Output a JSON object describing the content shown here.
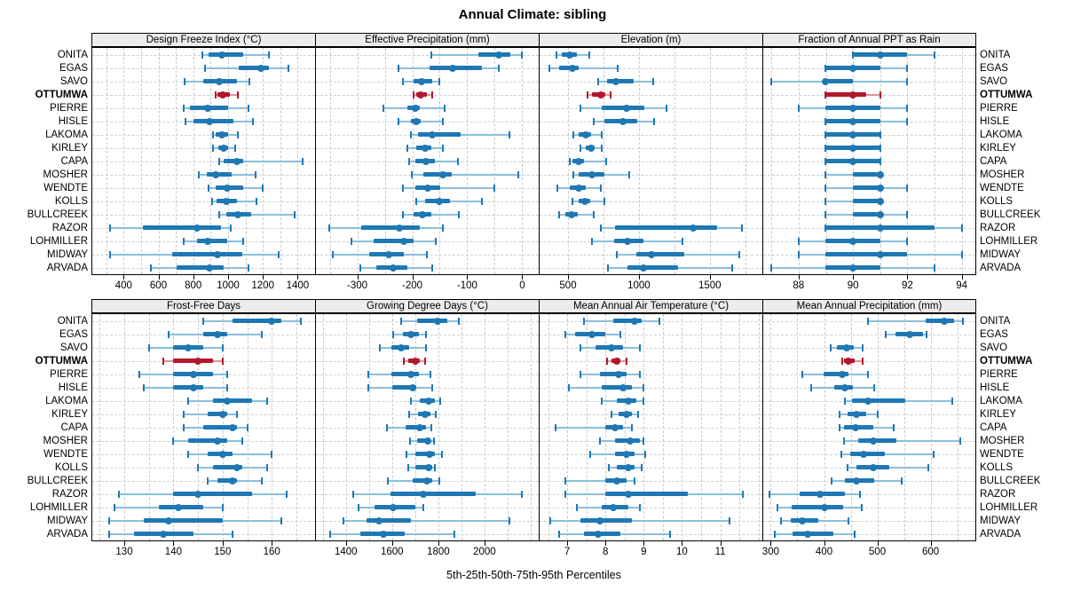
{
  "chart_data": {
    "type": "scatter",
    "style": "trellis_percentile_interval_dotplot",
    "title": "Annual Climate: sibling",
    "caption": "5th-25th-50th-75th-95th Percentiles",
    "percentile_levels": [
      5,
      25,
      50,
      75,
      95
    ],
    "highlighted_station": "OTTUMWA",
    "legend_position": "none",
    "grid": "dashed gray, horizontal per station and vertical at half-tick intervals",
    "colors": {
      "series_main": "#1f78b4",
      "series_light": "#8bbfdd",
      "highlight_main": "#b2182b",
      "highlight_light": "#dc9298",
      "strip_bg": "#ececec",
      "panel_border": "#000000",
      "grid_line": "#cccccc"
    },
    "stations": [
      "ONITA",
      "EGAS",
      "SAVO",
      "OTTUMWA",
      "PIERRE",
      "HISLE",
      "LAKOMA",
      "KIRLEY",
      "CAPA",
      "MOSHER",
      "WENDTE",
      "KOLLS",
      "BULLCREEK",
      "RAZOR",
      "LOHMILLER",
      "MIDWAY",
      "ARVADA"
    ],
    "panels": [
      {
        "title": "Design Freeze Index (°C)",
        "grid_row": 0,
        "grid_col": 0,
        "xlim": [
          220,
          1500
        ],
        "xticks": [
          400,
          600,
          800,
          1000,
          1200,
          1400
        ],
        "values": [
          [
            850,
            890,
            965,
            1085,
            1235
          ],
          [
            870,
            1060,
            1190,
            1235,
            1345
          ],
          [
            750,
            855,
            950,
            1050,
            1125
          ],
          [
            930,
            940,
            968,
            1010,
            1058
          ],
          [
            745,
            780,
            885,
            1000,
            1115
          ],
          [
            755,
            800,
            895,
            1030,
            1145
          ],
          [
            915,
            930,
            965,
            1000,
            1055
          ],
          [
            915,
            945,
            975,
            1000,
            1040
          ],
          [
            950,
            975,
            1050,
            1085,
            1430
          ],
          [
            830,
            880,
            930,
            1020,
            1160
          ],
          [
            890,
            930,
            995,
            1085,
            1200
          ],
          [
            910,
            935,
            990,
            1050,
            1165
          ],
          [
            950,
            990,
            1055,
            1135,
            1385
          ],
          [
            320,
            510,
            820,
            960,
            1015
          ],
          [
            745,
            820,
            885,
            995,
            1085
          ],
          [
            320,
            680,
            940,
            1080,
            1290
          ],
          [
            555,
            705,
            895,
            975,
            1115
          ]
        ]
      },
      {
        "title": "Effective Precipitation (mm)",
        "grid_row": 0,
        "grid_col": 1,
        "xlim": [
          -375,
          30
        ],
        "xticks": [
          -300,
          -200,
          -100,
          0
        ],
        "values": [
          [
            -165,
            -80,
            -43,
            -22,
            0
          ],
          [
            -225,
            -168,
            -126,
            -74,
            -42
          ],
          [
            -217,
            -198,
            -183,
            -163,
            -150
          ],
          [
            -198,
            -192,
            -184,
            -173,
            -164
          ],
          [
            -252,
            -209,
            -195,
            -187,
            -141
          ],
          [
            -225,
            -203,
            -192,
            -185,
            -145
          ],
          [
            -203,
            -190,
            -163,
            -112,
            -23
          ],
          [
            -209,
            -192,
            -177,
            -166,
            -145
          ],
          [
            -206,
            -195,
            -175,
            -158,
            -117
          ],
          [
            -201,
            -179,
            -145,
            -128,
            -7
          ],
          [
            -217,
            -195,
            -171,
            -149,
            -50
          ],
          [
            -192,
            -176,
            -151,
            -131,
            -74
          ],
          [
            -217,
            -198,
            -181,
            -166,
            -115
          ],
          [
            -351,
            -292,
            -224,
            -187,
            -145
          ],
          [
            -311,
            -270,
            -216,
            -197,
            -157
          ],
          [
            -344,
            -278,
            -243,
            -216,
            -174
          ],
          [
            -295,
            -265,
            -235,
            -208,
            -163
          ]
        ]
      },
      {
        "title": "Elevation (m)",
        "grid_row": 0,
        "grid_col": 2,
        "xlim": [
          300,
          1870
        ],
        "xticks": [
          500,
          1000,
          1500
        ],
        "values": [
          [
            420,
            455,
            510,
            565,
            650
          ],
          [
            370,
            440,
            530,
            575,
            850
          ],
          [
            712,
            775,
            840,
            960,
            1100
          ],
          [
            635,
            670,
            730,
            760,
            800
          ],
          [
            590,
            740,
            910,
            1040,
            1195
          ],
          [
            680,
            755,
            885,
            985,
            1105
          ],
          [
            535,
            575,
            625,
            660,
            735
          ],
          [
            590,
            625,
            660,
            690,
            740
          ],
          [
            510,
            530,
            577,
            610,
            770
          ],
          [
            540,
            577,
            670,
            755,
            930
          ],
          [
            425,
            510,
            577,
            623,
            730
          ],
          [
            530,
            573,
            620,
            656,
            754
          ],
          [
            438,
            483,
            525,
            567,
            680
          ],
          [
            733,
            833,
            1385,
            1552,
            1729
          ],
          [
            670,
            825,
            917,
            1035,
            1306
          ],
          [
            844,
            979,
            1088,
            1317,
            1708
          ],
          [
            779,
            921,
            1031,
            1275,
            1660
          ]
        ]
      },
      {
        "title": "Fraction of Annual PPT as Rain",
        "grid_row": 0,
        "grid_col": 3,
        "xlim": [
          86.7,
          94.5
        ],
        "xticks": [
          88,
          90,
          92,
          94
        ],
        "values": [
          [
            90,
            90,
            91,
            92,
            93
          ],
          [
            89,
            89,
            90,
            91,
            92
          ],
          [
            87,
            89,
            89,
            90,
            92
          ],
          [
            89,
            89,
            90,
            90.5,
            91
          ],
          [
            88,
            89,
            90,
            91,
            92
          ],
          [
            89,
            89,
            90,
            91,
            92
          ],
          [
            89,
            89,
            90,
            91,
            91
          ],
          [
            89,
            89,
            90,
            91,
            91
          ],
          [
            89,
            89,
            90,
            91,
            91
          ],
          [
            89,
            90,
            91,
            91,
            91
          ],
          [
            89,
            90,
            91,
            91,
            92
          ],
          [
            89,
            90,
            91,
            91,
            91
          ],
          [
            89,
            90,
            91,
            91,
            92
          ],
          [
            89,
            89,
            91,
            93,
            94
          ],
          [
            88,
            89,
            90,
            91,
            92
          ],
          [
            88,
            89,
            91,
            92,
            94
          ],
          [
            87,
            89,
            90,
            91,
            93
          ]
        ]
      },
      {
        "title": "Frost-Free Days",
        "grid_row": 1,
        "grid_col": 0,
        "xlim": [
          123.5,
          168.8
        ],
        "xticks": [
          130,
          140,
          150,
          160
        ],
        "values": [
          [
            146,
            152,
            160,
            162,
            166
          ],
          [
            139,
            146,
            149,
            151,
            158
          ],
          [
            135,
            140,
            143,
            146,
            150
          ],
          [
            138,
            140,
            145,
            148,
            150
          ],
          [
            133,
            140,
            144,
            148,
            151
          ],
          [
            134,
            140,
            144,
            146,
            151
          ],
          [
            143,
            148,
            151,
            156,
            159
          ],
          [
            142,
            147,
            150,
            151,
            153
          ],
          [
            142,
            146,
            152,
            153,
            155
          ],
          [
            140,
            143,
            149,
            151,
            154
          ],
          [
            143,
            147,
            150,
            152,
            160
          ],
          [
            145,
            148,
            153,
            154,
            159
          ],
          [
            147,
            149,
            152,
            153,
            158
          ],
          [
            129,
            140,
            145,
            156,
            163
          ],
          [
            128,
            137,
            141,
            146,
            150
          ],
          [
            127,
            134,
            139,
            150,
            162
          ],
          [
            127,
            132,
            138,
            144,
            152
          ]
        ]
      },
      {
        "title": "Growing Degree Days (°C)",
        "grid_row": 1,
        "grid_col": 1,
        "xlim": [
          1270,
          2235
        ],
        "xticks": [
          1400,
          1600,
          1800,
          2000
        ],
        "values": [
          [
            1640,
            1710,
            1795,
            1840,
            1890
          ],
          [
            1605,
            1645,
            1680,
            1715,
            1745
          ],
          [
            1545,
            1595,
            1640,
            1675,
            1745
          ],
          [
            1650,
            1670,
            1700,
            1720,
            1742
          ],
          [
            1495,
            1595,
            1680,
            1715,
            1765
          ],
          [
            1495,
            1600,
            1690,
            1705,
            1772
          ],
          [
            1682,
            1720,
            1757,
            1785,
            1810
          ],
          [
            1673,
            1714,
            1742,
            1765,
            1788
          ],
          [
            1578,
            1657,
            1720,
            1746,
            1769
          ],
          [
            1679,
            1708,
            1755,
            1765,
            1782
          ],
          [
            1663,
            1702,
            1763,
            1785,
            1817
          ],
          [
            1670,
            1702,
            1757,
            1772,
            1785
          ],
          [
            1580,
            1689,
            1750,
            1772,
            1804
          ],
          [
            1433,
            1593,
            1737,
            1964,
            2162
          ],
          [
            1456,
            1523,
            1606,
            1702,
            1737
          ],
          [
            1390,
            1490,
            1542,
            1682,
            2110
          ],
          [
            1331,
            1461,
            1561,
            1653,
            1868
          ]
        ]
      },
      {
        "title": "Mean Annual Air Temperature (°C)",
        "grid_row": 1,
        "grid_col": 2,
        "xlim": [
          6.28,
          12.1
        ],
        "xticks": [
          7,
          8,
          9,
          10,
          11
        ],
        "values": [
          [
            7.45,
            8.2,
            8.75,
            8.95,
            9.4
          ],
          [
            6.95,
            7.2,
            7.65,
            8.0,
            8.4
          ],
          [
            7.35,
            7.75,
            8.15,
            8.45,
            8.9
          ],
          [
            8.05,
            8.15,
            8.3,
            8.4,
            8.55
          ],
          [
            7.35,
            7.85,
            8.35,
            8.55,
            8.9
          ],
          [
            7.05,
            7.9,
            8.45,
            8.7,
            9.0
          ],
          [
            7.9,
            8.3,
            8.6,
            8.8,
            9.0
          ],
          [
            8.15,
            8.35,
            8.55,
            8.7,
            8.85
          ],
          [
            6.7,
            8.0,
            8.25,
            8.45,
            8.7
          ],
          [
            7.85,
            8.25,
            8.65,
            8.9,
            9.0
          ],
          [
            7.6,
            8.25,
            8.55,
            8.75,
            9.05
          ],
          [
            8.1,
            8.3,
            8.6,
            8.75,
            8.95
          ],
          [
            6.95,
            8.0,
            8.3,
            8.55,
            8.75
          ],
          [
            6.95,
            8.0,
            8.6,
            10.15,
            11.6
          ],
          [
            7.25,
            7.9,
            8.2,
            8.6,
            8.9
          ],
          [
            6.55,
            7.35,
            7.85,
            8.7,
            11.25
          ],
          [
            6.8,
            7.45,
            7.8,
            8.4,
            9.7
          ]
        ]
      },
      {
        "title": "Mean Annual Precipitation (mm)",
        "grid_row": 1,
        "grid_col": 3,
        "xlim": [
          286,
          684
        ],
        "xticks": [
          300,
          400,
          500,
          600
        ],
        "values": [
          [
            483,
            591,
            626,
            644,
            660
          ],
          [
            515,
            534,
            560,
            586,
            593
          ],
          [
            412,
            424,
            442,
            456,
            473
          ],
          [
            434,
            438,
            446,
            457,
            472
          ],
          [
            359,
            399,
            435,
            446,
            483
          ],
          [
            376,
            420,
            439,
            455,
            494
          ],
          [
            439,
            453,
            483,
            552,
            641
          ],
          [
            429,
            445,
            461,
            479,
            501
          ],
          [
            429,
            438,
            459,
            493,
            530
          ],
          [
            438,
            464,
            493,
            536,
            655
          ],
          [
            433,
            450,
            475,
            514,
            605
          ],
          [
            445,
            461,
            492,
            522,
            595
          ],
          [
            414,
            439,
            461,
            494,
            546
          ],
          [
            298,
            354,
            392,
            439,
            468
          ],
          [
            313,
            340,
            401,
            436,
            471
          ],
          [
            319,
            337,
            359,
            390,
            446
          ],
          [
            308,
            341,
            370,
            417,
            457
          ]
        ]
      }
    ]
  }
}
